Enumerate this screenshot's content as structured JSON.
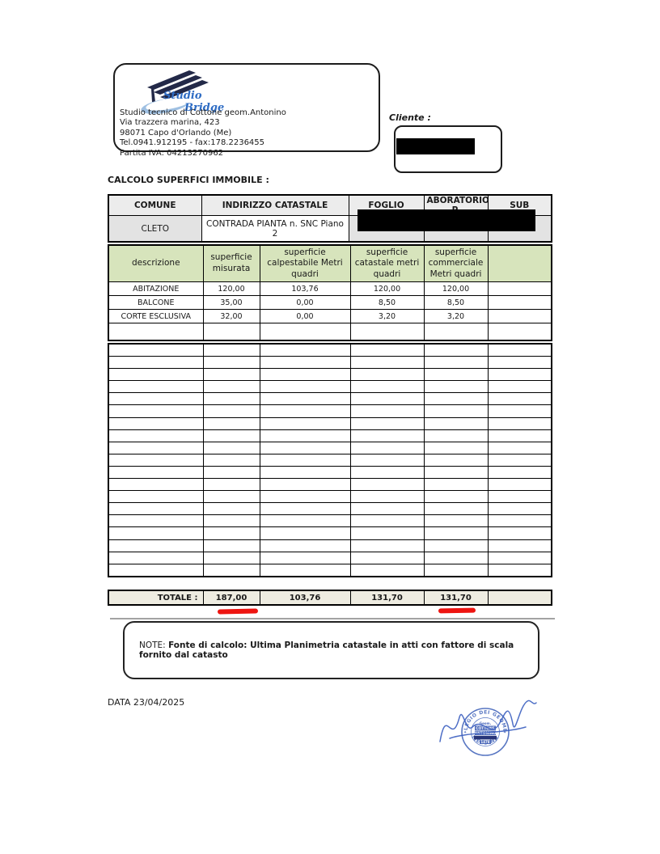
{
  "letterhead": {
    "logo": {
      "word1": "Studio",
      "word2": "Bridge",
      "accent_color": "#2e6cc4",
      "roof_color": "#232948",
      "swoosh_color": "#9fc0e2"
    },
    "lines": [
      "Studio tecnico di Cottone geom.Antonino",
      "Via trazzera marina, 423",
      "98071 Capo d'Orlando (Me)",
      "Tel.0941.912195 - fax:178.2236455",
      "Partita IVA: 04213270962"
    ]
  },
  "client": {
    "label": "Cliente :"
  },
  "section_title": "CALCOLO SUPERFICI IMMOBILE :",
  "property_table": {
    "headers": [
      "COMUNE",
      "INDIRIZZO CATASTALE",
      "FOGLIO",
      "ABORATORIO P.",
      "SUB"
    ],
    "row": {
      "comune": "CLETO",
      "indirizzo": "CONTRADA PIANTA n. SNC Piano 2"
    }
  },
  "surface_table": {
    "headers": [
      "descrizione",
      "superficie misurata",
      "superficie calpestabile  Metri quadri",
      "superficie catastale  metri quadri",
      "superficie commerciale Metri quadri",
      ""
    ],
    "rows": [
      [
        "ABITAZIONE",
        "120,00",
        "103,76",
        "120,00",
        "120,00",
        ""
      ],
      [
        "BALCONE",
        "35,00",
        "0,00",
        "8,50",
        "8,50",
        ""
      ],
      [
        "CORTE ESCLUSIVA",
        "32,00",
        "0,00",
        "3,20",
        "3,20",
        ""
      ]
    ],
    "empty_rows_block1": 1,
    "empty_rows_block2": 19,
    "total": {
      "label": "TOTALE :",
      "values": [
        "187,00",
        "103,76",
        "131,70",
        "131,70",
        ""
      ]
    },
    "colors": {
      "header_bg": "#d7e4bc",
      "total_bg": "#eeece1",
      "gray_cell": "#e3e3e3",
      "highlight_mark": "#ee1511"
    }
  },
  "note": {
    "label": "NOTE:",
    "text": "Fonte di calcolo: Ultima Planimetria catastale in atti con fattore di scala fornito dal catasto"
  },
  "footer": {
    "date_line": "DATA 23/04/2025"
  },
  "stamp": {
    "ring_top": "COLLEGIO DEI GEOMETRI",
    "ring_bottom": "MESSINA",
    "center_line1": "Geom.",
    "center_line2": "COTTONE",
    "center_line3": "ANTONINO",
    "center_line5": "1478",
    "color": "#4a6bbd"
  }
}
